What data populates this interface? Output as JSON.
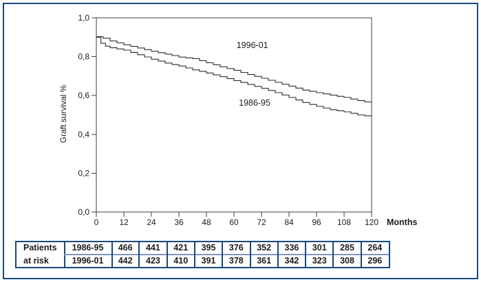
{
  "colors": {
    "frame_border": "#17497f",
    "table_border": "#17497f",
    "table_divider": "#7d97c2",
    "axis": "#3c3c3c",
    "curve": "#2b2b2b",
    "text": "#1c1c1c"
  },
  "chart_data": {
    "type": "line",
    "subtype": "kaplan-meier-step",
    "title": "",
    "xlabel": "Months",
    "ylabel": "Graft survival %",
    "xlim": [
      0,
      120
    ],
    "ylim": [
      0.0,
      1.0
    ],
    "grid": false,
    "x_ticks": [
      {
        "value": 0,
        "label": "0"
      },
      {
        "value": 12,
        "label": "12"
      },
      {
        "value": 24,
        "label": "24"
      },
      {
        "value": 36,
        "label": "36"
      },
      {
        "value": 48,
        "label": "48"
      },
      {
        "value": 60,
        "label": "60"
      },
      {
        "value": 72,
        "label": "72"
      },
      {
        "value": 84,
        "label": "84"
      },
      {
        "value": 96,
        "label": "96"
      },
      {
        "value": 108,
        "label": "108"
      },
      {
        "value": 120,
        "label": "120"
      }
    ],
    "y_ticks": [
      {
        "value": 1.0,
        "label": "1,0"
      },
      {
        "value": 0.8,
        "label": "0,8"
      },
      {
        "value": 0.6,
        "label": "0,6"
      },
      {
        "value": 0.4,
        "label": "0,4"
      },
      {
        "value": 0.2,
        "label": "0,2"
      },
      {
        "value": 0.0,
        "label": "0,0"
      }
    ],
    "series": [
      {
        "name": "1996-01",
        "label": "1996-01",
        "label_pos": {
          "month": 68,
          "value": 0.845
        },
        "points": [
          [
            0,
            0.903
          ],
          [
            3,
            0.895
          ],
          [
            6,
            0.881
          ],
          [
            12,
            0.861
          ],
          [
            18,
            0.845
          ],
          [
            24,
            0.828
          ],
          [
            30,
            0.813
          ],
          [
            36,
            0.798
          ],
          [
            42,
            0.79
          ],
          [
            48,
            0.769
          ],
          [
            54,
            0.748
          ],
          [
            60,
            0.73
          ],
          [
            66,
            0.708
          ],
          [
            72,
            0.689
          ],
          [
            78,
            0.668
          ],
          [
            84,
            0.648
          ],
          [
            90,
            0.628
          ],
          [
            96,
            0.615
          ],
          [
            102,
            0.602
          ],
          [
            108,
            0.59
          ],
          [
            114,
            0.574
          ],
          [
            120,
            0.56
          ]
        ]
      },
      {
        "name": "1986-95",
        "label": "1986-95",
        "label_pos": {
          "month": 69,
          "value": 0.548
        },
        "points": [
          [
            0,
            0.9
          ],
          [
            2,
            0.869
          ],
          [
            4,
            0.854
          ],
          [
            6,
            0.846
          ],
          [
            12,
            0.834
          ],
          [
            18,
            0.81
          ],
          [
            24,
            0.787
          ],
          [
            30,
            0.767
          ],
          [
            36,
            0.752
          ],
          [
            42,
            0.732
          ],
          [
            48,
            0.716
          ],
          [
            54,
            0.697
          ],
          [
            60,
            0.677
          ],
          [
            66,
            0.657
          ],
          [
            72,
            0.637
          ],
          [
            78,
            0.615
          ],
          [
            84,
            0.59
          ],
          [
            90,
            0.564
          ],
          [
            96,
            0.544
          ],
          [
            102,
            0.527
          ],
          [
            108,
            0.516
          ],
          [
            114,
            0.5
          ],
          [
            120,
            0.491
          ]
        ]
      }
    ]
  },
  "risk_table": {
    "row_header": [
      "Patients",
      "at risk"
    ],
    "rows": [
      {
        "group": "1986-95",
        "counts": [
          466,
          441,
          421,
          395,
          376,
          352,
          336,
          301,
          285,
          264
        ]
      },
      {
        "group": "1996-01",
        "counts": [
          442,
          423,
          410,
          391,
          378,
          361,
          342,
          323,
          308,
          296
        ]
      }
    ]
  }
}
